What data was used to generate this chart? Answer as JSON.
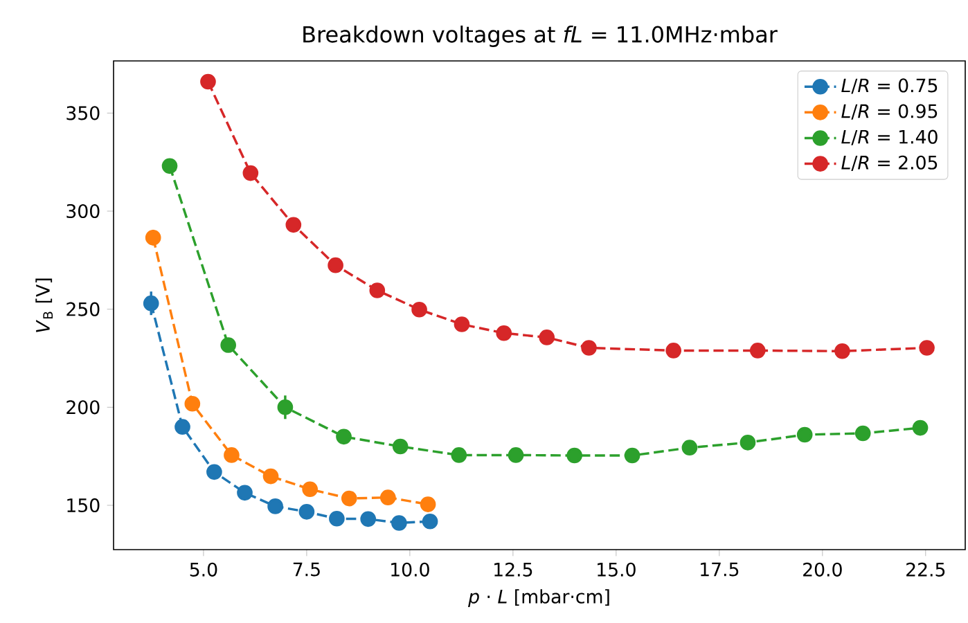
{
  "chart_data": {
    "type": "line",
    "title": "Breakdown voltages at *fL* = 11.0MHz·mbar",
    "xlabel": "*p* · *L* [mbar·cm]",
    "ylabel": "*V*$_{B}$ [V]",
    "xlim": [
      2.82,
      23.46
    ],
    "ylim": [
      127.4,
      376.6
    ],
    "xticks": [
      {
        "value": 5,
        "label": "5.0"
      },
      {
        "value": 7.5,
        "label": "7.5"
      },
      {
        "value": 10,
        "label": "10.0"
      },
      {
        "value": 12.5,
        "label": "12.5"
      },
      {
        "value": 15,
        "label": "15.0"
      },
      {
        "value": 17.5,
        "label": "17.5"
      },
      {
        "value": 20,
        "label": "20.0"
      },
      {
        "value": 22.5,
        "label": "22.5"
      }
    ],
    "yticks": [
      150,
      200,
      250,
      300,
      350
    ],
    "legend": "top right",
    "marker": "circle",
    "line_style": "dashed",
    "grid": false,
    "series": [
      {
        "name": "*L*/*R* = 0.75",
        "color": "#1f77b4",
        "x": [
          3.73,
          4.49,
          5.26,
          6.0,
          6.74,
          7.5,
          8.23,
          8.99,
          9.74,
          10.49
        ],
        "values": [
          253,
          190,
          167,
          156.4,
          149.5,
          146.7,
          143.2,
          143,
          141,
          141.8
        ],
        "errors": [
          6,
          3,
          null,
          null,
          null,
          null,
          null,
          null,
          null,
          null
        ]
      },
      {
        "name": "*L*/*R* = 0.95",
        "color": "#ff7f0e",
        "x": [
          3.78,
          4.73,
          5.68,
          6.63,
          7.58,
          8.53,
          9.47,
          10.44
        ],
        "values": [
          286.5,
          201.8,
          175.6,
          164.8,
          158.2,
          153.5,
          154,
          150.5
        ],
        "errors": [
          4,
          null,
          null,
          null,
          null,
          null,
          null,
          null
        ]
      },
      {
        "name": "*L*/*R* = 1.40",
        "color": "#2ca02c",
        "x": [
          4.18,
          5.6,
          6.98,
          8.4,
          9.77,
          11.19,
          12.57,
          13.99,
          15.39,
          16.78,
          18.19,
          19.57,
          20.98,
          22.37
        ],
        "values": [
          323,
          231.7,
          200,
          185,
          180,
          175.6,
          175.6,
          175.4,
          175.4,
          179.4,
          182,
          186,
          186.7,
          189.5
        ],
        "errors": [
          null,
          null,
          6,
          null,
          null,
          null,
          null,
          null,
          null,
          null,
          3,
          null,
          null,
          null
        ]
      },
      {
        "name": "*L*/*R* = 2.05",
        "color": "#d62728",
        "x": [
          5.11,
          6.14,
          7.18,
          8.2,
          9.21,
          10.23,
          11.26,
          12.28,
          13.32,
          14.34,
          16.39,
          18.43,
          20.48,
          22.53
        ],
        "values": [
          366,
          319.4,
          293,
          272.4,
          259.6,
          249.8,
          242.3,
          237.8,
          235.6,
          230.3,
          228.9,
          228.9,
          228.6,
          230.3
        ],
        "errors": [
          null,
          null,
          null,
          null,
          null,
          null,
          null,
          null,
          null,
          null,
          null,
          null,
          null,
          null
        ]
      }
    ]
  }
}
